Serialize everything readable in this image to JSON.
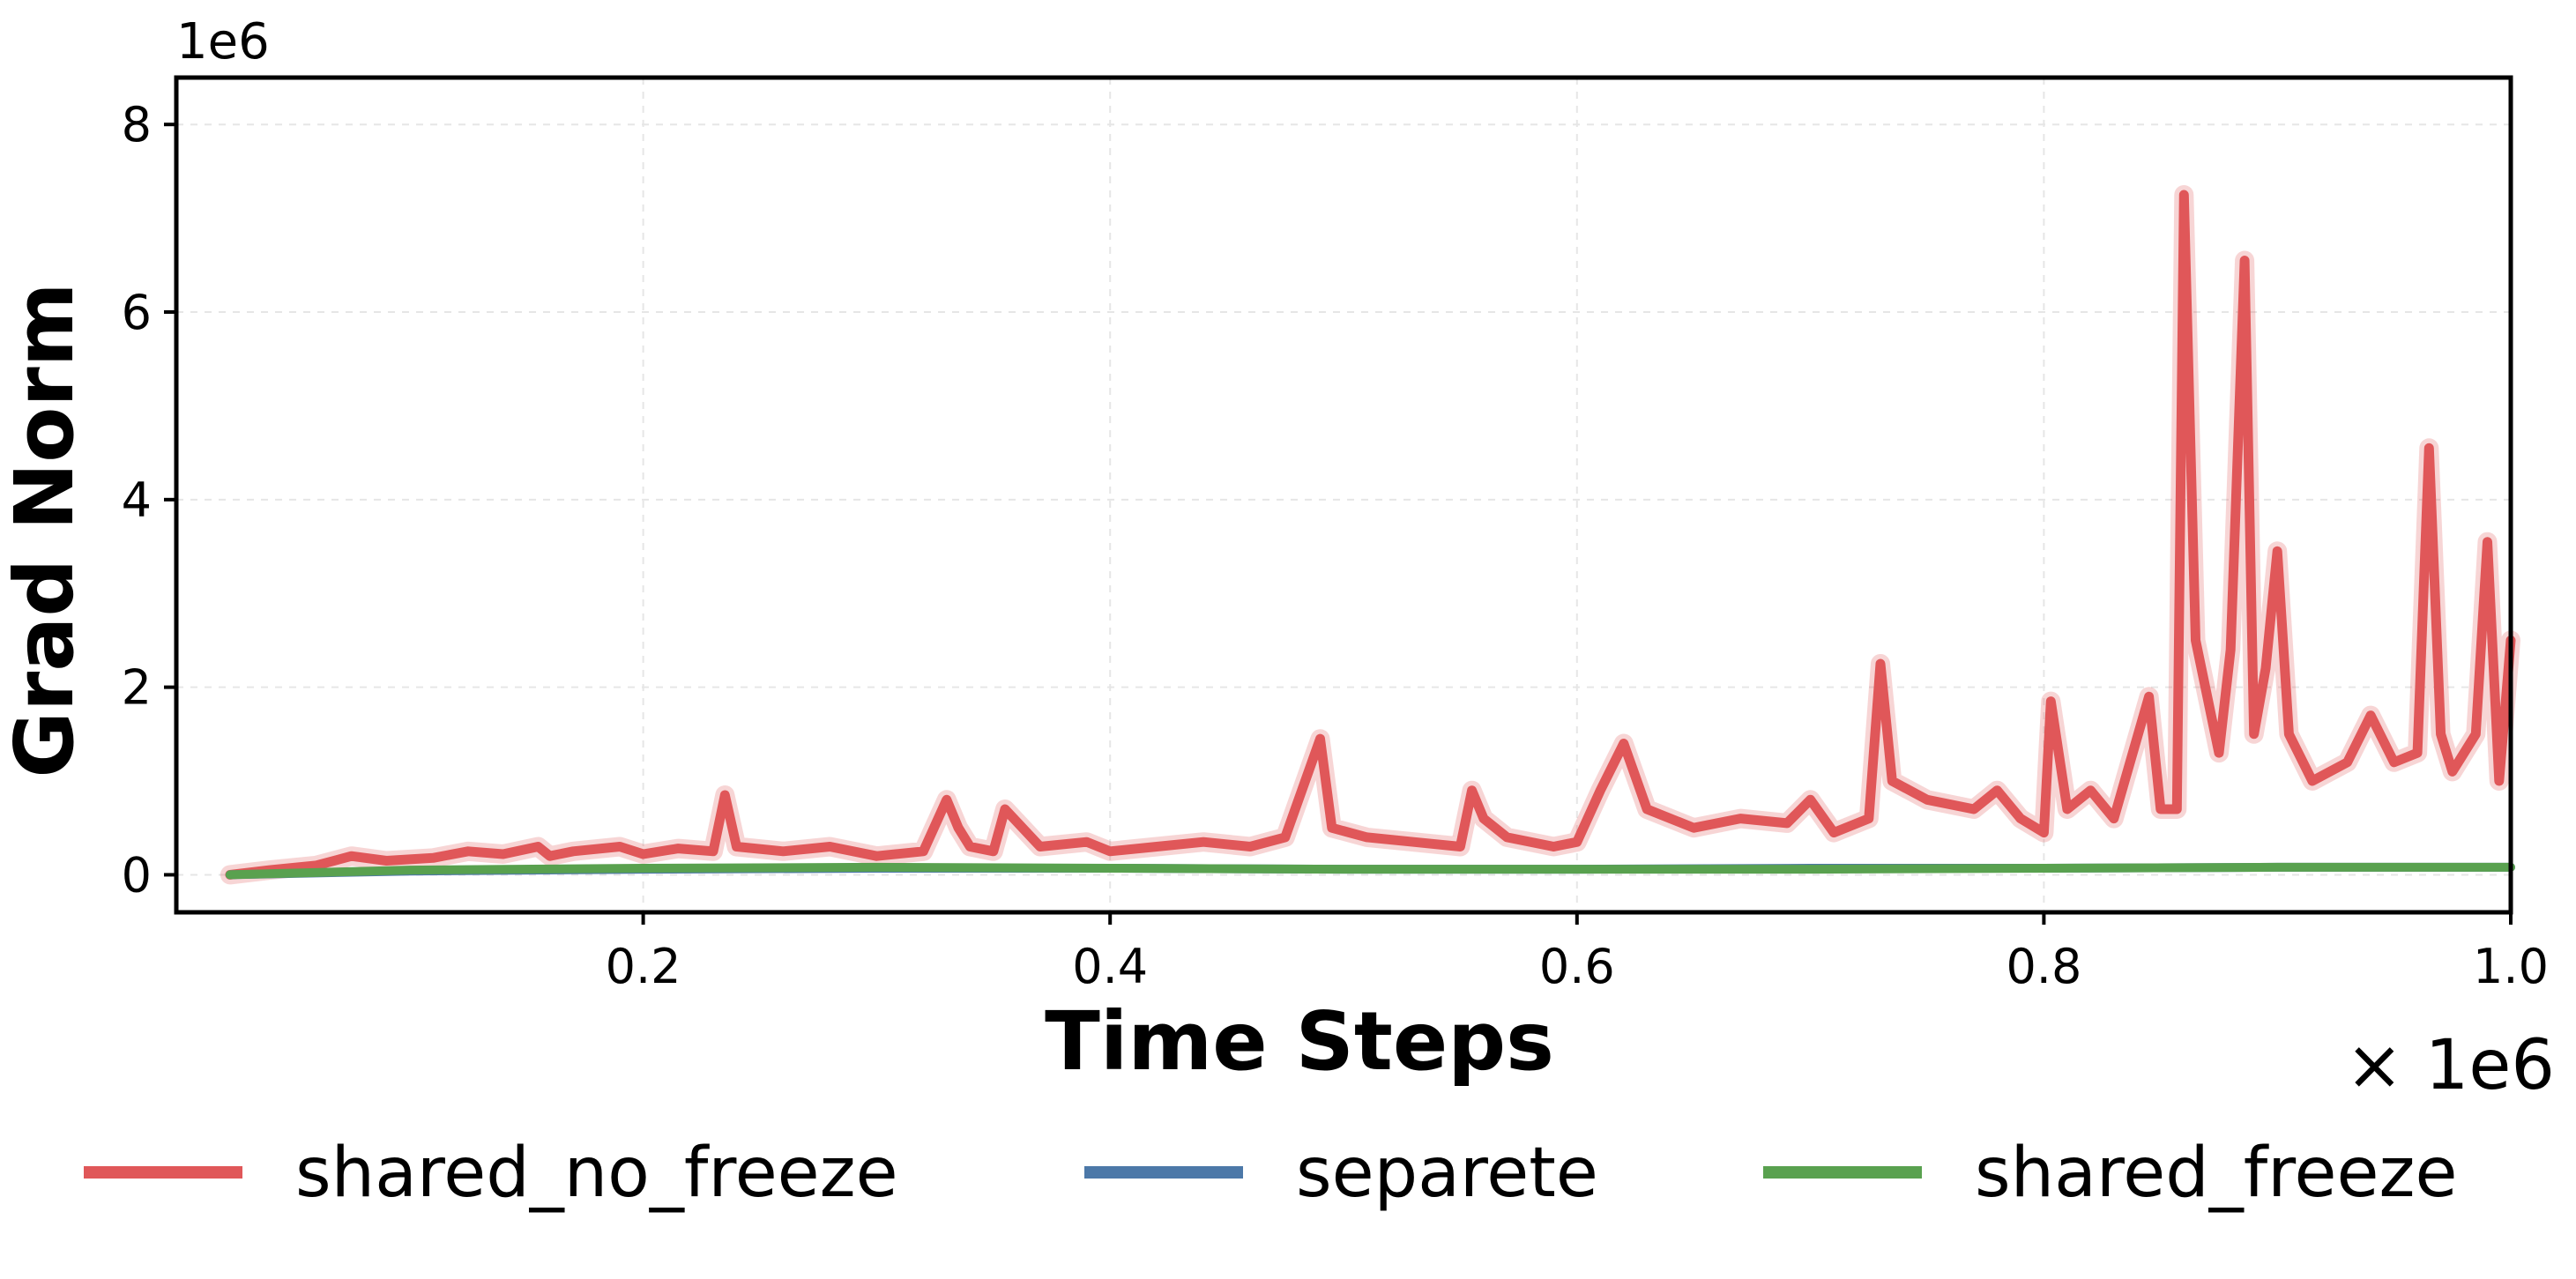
{
  "chart_data": {
    "type": "line",
    "xlabel": "Time Steps",
    "ylabel": "Grad Norm",
    "x_scale_label": "× 1e6",
    "y_scale_label": "1e6",
    "xlim": [
      0.0,
      1.0
    ],
    "ylim": [
      -0.4,
      8.5
    ],
    "xticks": [
      0.2,
      0.4,
      0.6,
      0.8,
      1.0
    ],
    "xtick_labels": [
      "0.2",
      "0.4",
      "0.6",
      "0.8",
      "1.0"
    ],
    "yticks": [
      0,
      2,
      4,
      6,
      8
    ],
    "ytick_labels": [
      "0",
      "2",
      "4",
      "6",
      "8"
    ],
    "grid": true,
    "legend_position": "bottom",
    "series": [
      {
        "name": "shared_no_freeze",
        "color": "#e05759",
        "x": [
          0.023,
          0.04,
          0.06,
          0.075,
          0.09,
          0.11,
          0.125,
          0.14,
          0.155,
          0.16,
          0.17,
          0.19,
          0.2,
          0.215,
          0.23,
          0.235,
          0.24,
          0.26,
          0.28,
          0.3,
          0.32,
          0.33,
          0.335,
          0.34,
          0.35,
          0.355,
          0.37,
          0.39,
          0.4,
          0.42,
          0.44,
          0.46,
          0.475,
          0.49,
          0.495,
          0.51,
          0.53,
          0.55,
          0.555,
          0.56,
          0.57,
          0.59,
          0.6,
          0.61,
          0.62,
          0.63,
          0.65,
          0.67,
          0.69,
          0.7,
          0.71,
          0.725,
          0.73,
          0.735,
          0.75,
          0.77,
          0.78,
          0.79,
          0.8,
          0.803,
          0.81,
          0.82,
          0.83,
          0.845,
          0.85,
          0.857,
          0.86,
          0.865,
          0.875,
          0.88,
          0.886,
          0.89,
          0.895,
          0.9,
          0.905,
          0.915,
          0.93,
          0.94,
          0.95,
          0.96,
          0.965,
          0.97,
          0.975,
          0.985,
          0.99,
          0.995,
          1.0
        ],
        "y": [
          0.0,
          0.05,
          0.1,
          0.2,
          0.15,
          0.18,
          0.25,
          0.22,
          0.3,
          0.2,
          0.25,
          0.3,
          0.22,
          0.28,
          0.25,
          0.85,
          0.3,
          0.25,
          0.3,
          0.2,
          0.25,
          0.8,
          0.5,
          0.3,
          0.25,
          0.7,
          0.3,
          0.35,
          0.25,
          0.3,
          0.35,
          0.3,
          0.4,
          1.45,
          0.5,
          0.4,
          0.35,
          0.3,
          0.9,
          0.6,
          0.4,
          0.3,
          0.35,
          0.9,
          1.4,
          0.7,
          0.5,
          0.6,
          0.55,
          0.8,
          0.45,
          0.6,
          2.25,
          1.0,
          0.8,
          0.7,
          0.9,
          0.6,
          0.45,
          1.85,
          0.7,
          0.9,
          0.6,
          1.9,
          0.7,
          0.7,
          7.25,
          2.5,
          1.3,
          2.4,
          6.55,
          1.5,
          2.2,
          3.45,
          1.5,
          1.0,
          1.2,
          1.7,
          1.2,
          1.3,
          4.55,
          1.5,
          1.1,
          1.5,
          3.55,
          1.0,
          2.5
        ]
      },
      {
        "name": "separete",
        "color": "#4c78a8",
        "x": [
          0.023,
          0.1,
          0.2,
          0.3,
          0.4,
          0.5,
          0.6,
          0.7,
          0.8,
          0.9,
          1.0
        ],
        "y": [
          0.0,
          0.04,
          0.06,
          0.07,
          0.07,
          0.06,
          0.06,
          0.07,
          0.07,
          0.08,
          0.08
        ]
      },
      {
        "name": "shared_freeze",
        "color": "#59a14f",
        "x": [
          0.023,
          0.1,
          0.2,
          0.3,
          0.4,
          0.5,
          0.6,
          0.7,
          0.8,
          0.9,
          1.0
        ],
        "y": [
          0.0,
          0.05,
          0.07,
          0.08,
          0.07,
          0.06,
          0.06,
          0.06,
          0.07,
          0.08,
          0.08
        ]
      }
    ]
  }
}
